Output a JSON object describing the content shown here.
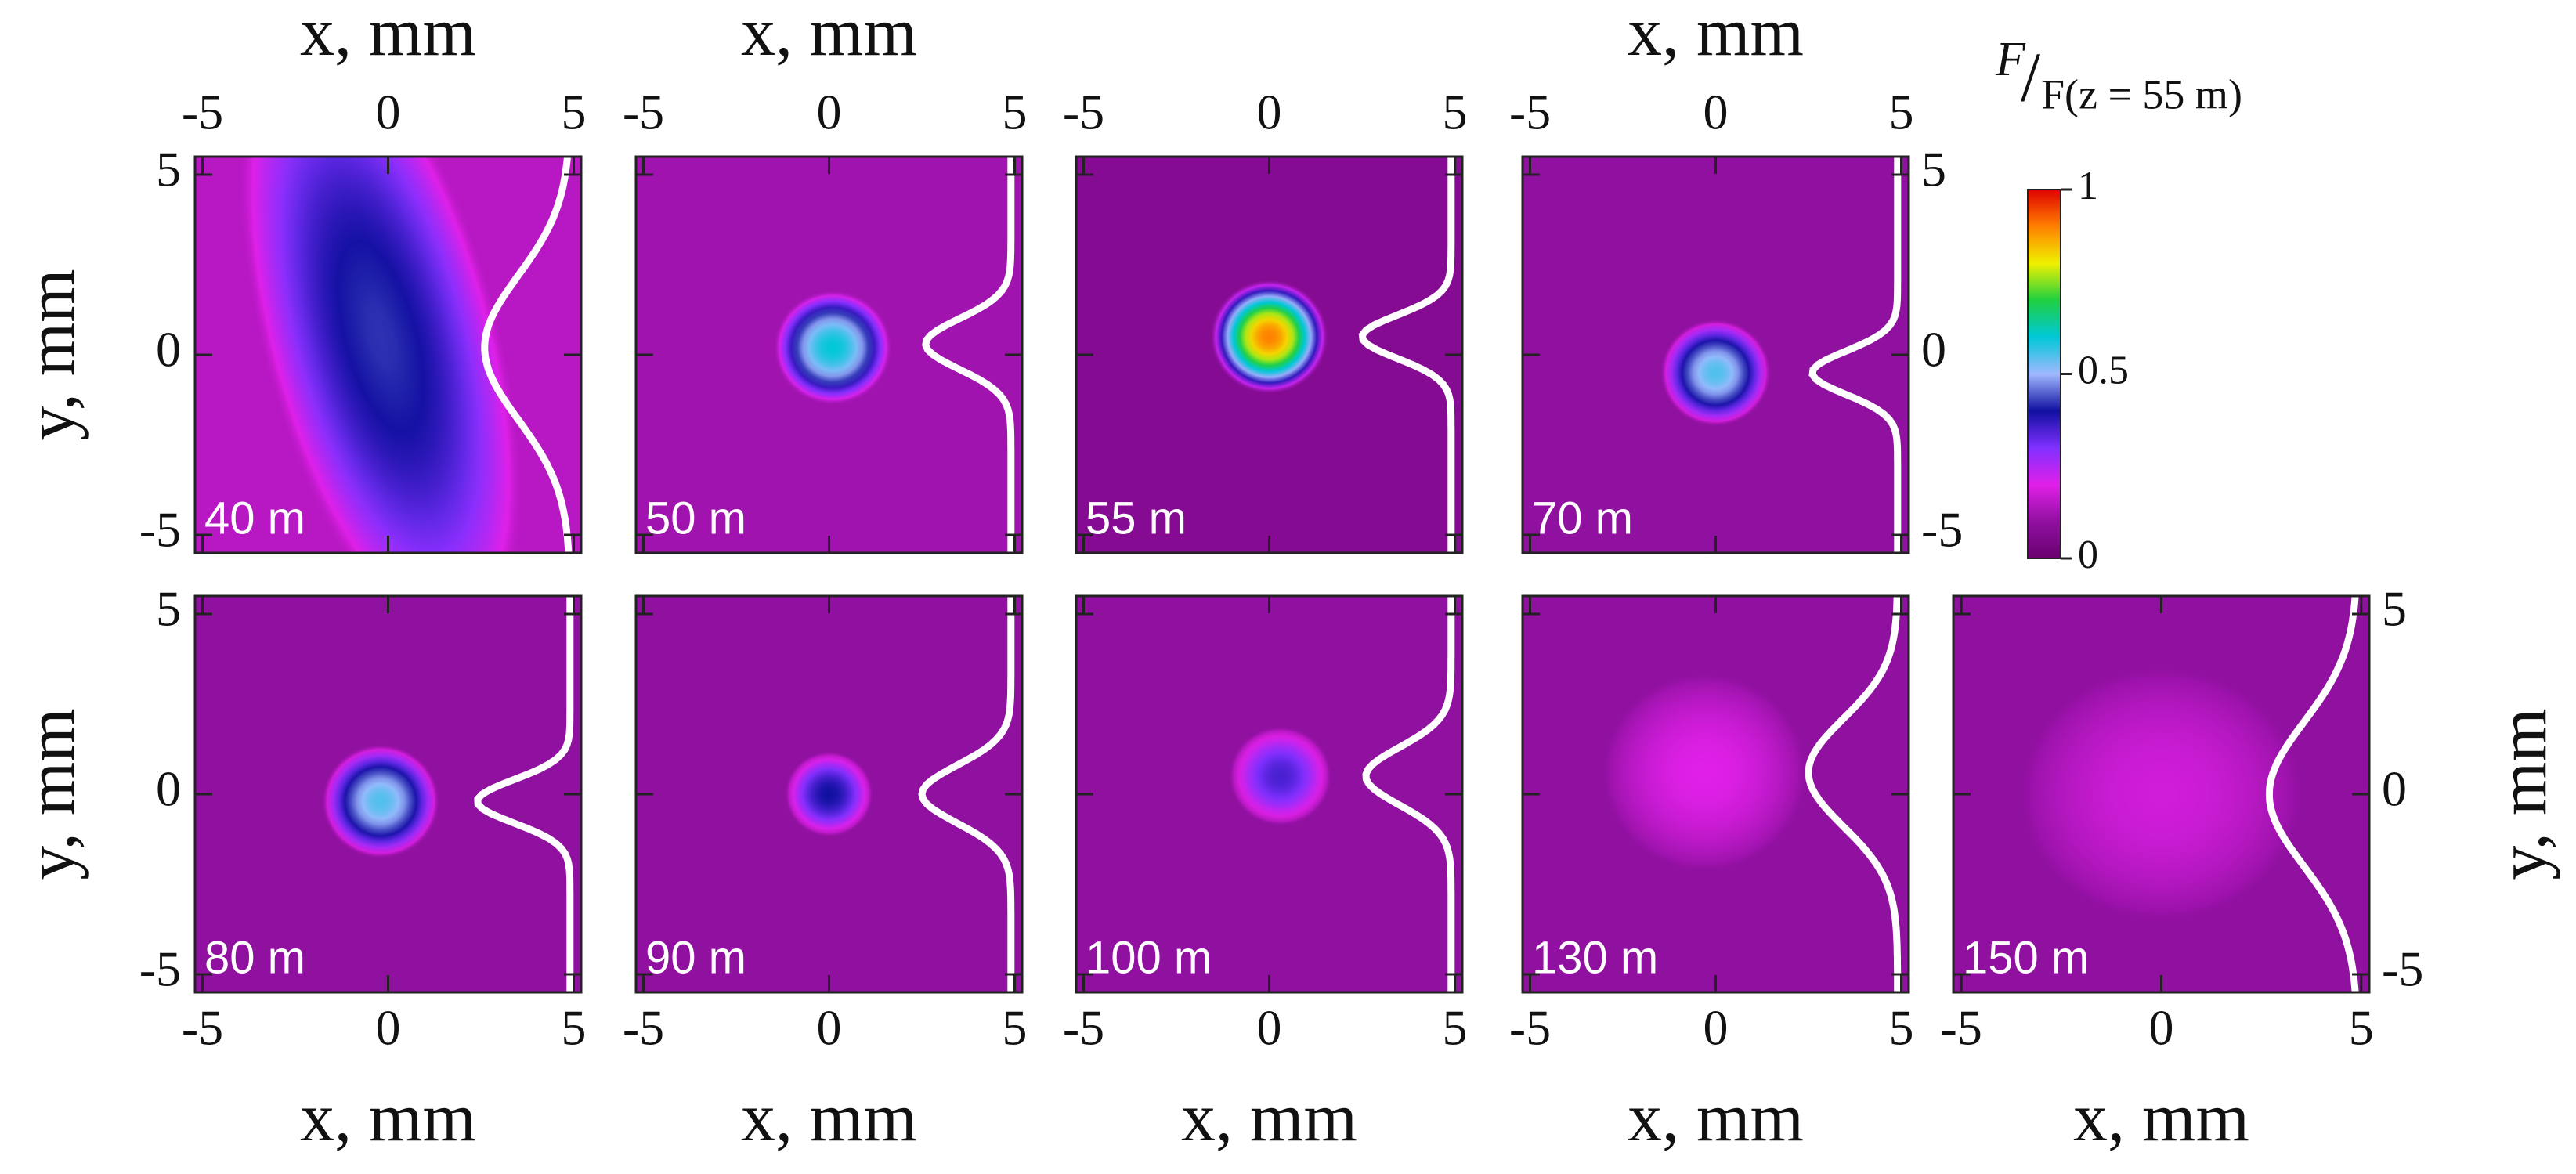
{
  "chart_data": {
    "type": "image-grid",
    "x_label": "x, mm",
    "y_label": "y, mm",
    "colorbar_label_num": "F",
    "colorbar_label_den": "F(z = 55 m)",
    "xlim": [
      -5.2,
      5.2
    ],
    "ylim": [
      -5.5,
      5.5
    ],
    "xticks": [
      -5,
      0,
      5
    ],
    "yticks": [
      -5,
      0,
      5
    ],
    "colorbar_lim": [
      0,
      1
    ],
    "colorbar_ticks": [
      0,
      0.5,
      1
    ],
    "colormap": [
      "#6a0070",
      "#9010a0",
      "#e020e8",
      "#8030ff",
      "#1010a0",
      "#a0b8ff",
      "#00c8d8",
      "#20d040",
      "#f0f000",
      "#ff8000",
      "#e00000"
    ],
    "profile_baseline": 4.9,
    "panels": [
      {
        "label": "40 m",
        "background": 0.15,
        "center_x": -0.2,
        "center_y": 0.5,
        "radius_x": 1.6,
        "radius_y": 4.5,
        "tilt": -15,
        "peak": 0.42,
        "profile_center": 0.2,
        "profile_sigma": 2.0,
        "profile_depth": 2.3
      },
      {
        "label": "50 m",
        "background": 0.12,
        "center_x": 0.1,
        "center_y": 0.2,
        "radius_x": 0.8,
        "radius_y": 0.8,
        "tilt": 0,
        "peak": 0.6,
        "profile_center": 0.3,
        "profile_sigma": 0.7,
        "profile_depth": 2.3
      },
      {
        "label": "55 m",
        "background": 0.07,
        "center_x": 0,
        "center_y": 0.5,
        "radius_x": 0.8,
        "radius_y": 0.8,
        "tilt": 0,
        "peak": 0.9,
        "profile_center": 0.5,
        "profile_sigma": 0.6,
        "profile_depth": 2.4
      },
      {
        "label": "70 m",
        "background": 0.1,
        "center_x": 0,
        "center_y": -0.5,
        "radius_x": 0.75,
        "radius_y": 0.75,
        "tilt": 0,
        "peak": 0.55,
        "profile_center": -0.5,
        "profile_sigma": 0.6,
        "profile_depth": 2.3
      },
      {
        "label": "80 m",
        "background": 0.1,
        "center_x": -0.2,
        "center_y": -0.2,
        "radius_x": 0.8,
        "radius_y": 0.8,
        "tilt": 0,
        "peak": 0.55,
        "profile_center": -0.2,
        "profile_sigma": 0.6,
        "profile_depth": 2.5
      },
      {
        "label": "90 m",
        "background": 0.1,
        "center_x": 0,
        "center_y": 0,
        "radius_x": 0.6,
        "radius_y": 0.6,
        "tilt": 0,
        "peak": 0.4,
        "profile_center": 0,
        "profile_sigma": 0.8,
        "profile_depth": 2.4
      },
      {
        "label": "100 m",
        "background": 0.1,
        "center_x": 0.3,
        "center_y": 0.5,
        "radius_x": 0.7,
        "radius_y": 0.7,
        "tilt": 0,
        "peak": 0.35,
        "profile_center": 0.5,
        "profile_sigma": 0.8,
        "profile_depth": 2.3
      },
      {
        "label": "130 m",
        "background": 0.1,
        "center_x": -0.3,
        "center_y": 0.6,
        "radius_x": 1.4,
        "radius_y": 1.4,
        "tilt": 0,
        "peak": 0.2,
        "profile_center": 0.6,
        "profile_sigma": 1.5,
        "profile_depth": 2.4
      },
      {
        "label": "150 m",
        "background": 0.1,
        "center_x": 0,
        "center_y": 0,
        "radius_x": 1.8,
        "radius_y": 1.8,
        "tilt": 0,
        "peak": 0.18,
        "profile_center": 0,
        "profile_sigma": 2.0,
        "profile_depth": 2.2
      }
    ]
  }
}
